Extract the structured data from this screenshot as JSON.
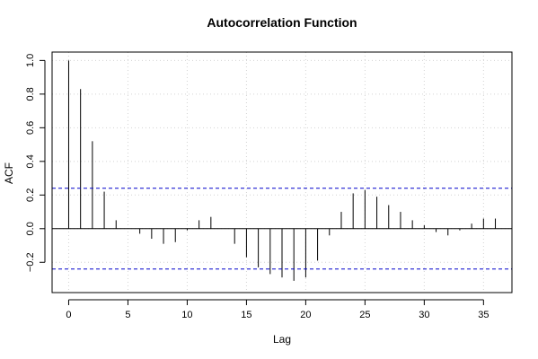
{
  "chart_data": {
    "type": "bar",
    "title": "Autocorrelation Function",
    "xlabel": "Lag",
    "ylabel": "ACF",
    "xlim": [
      -1.4,
      37.4
    ],
    "ylim": [
      -0.38,
      1.05
    ],
    "xticks": [
      0,
      5,
      10,
      15,
      20,
      25,
      30,
      35
    ],
    "xtick_labels": [
      "0",
      "5",
      "10",
      "15",
      "20",
      "25",
      "30",
      "35"
    ],
    "yticks": [
      -0.2,
      0.0,
      0.2,
      0.4,
      0.6,
      0.8,
      1.0
    ],
    "ytick_labels": [
      "−0.2",
      "0.0",
      "0.2",
      "0.4",
      "0.6",
      "0.8",
      "1.0"
    ],
    "grid": true,
    "confidence_bound": 0.24,
    "confidence_color": "#0000cc",
    "bar_color": "#000000",
    "lags": [
      0,
      1,
      2,
      3,
      4,
      5,
      6,
      7,
      8,
      9,
      10,
      11,
      12,
      13,
      14,
      15,
      16,
      17,
      18,
      19,
      20,
      21,
      22,
      23,
      24,
      25,
      26,
      27,
      28,
      29,
      30,
      31,
      32,
      33,
      34,
      35,
      36
    ],
    "values": [
      1.0,
      0.83,
      0.52,
      0.22,
      0.05,
      0.0,
      -0.03,
      -0.06,
      -0.09,
      -0.08,
      -0.01,
      0.05,
      0.07,
      0.0,
      -0.09,
      -0.17,
      -0.23,
      -0.27,
      -0.29,
      -0.31,
      -0.29,
      -0.19,
      -0.04,
      0.1,
      0.21,
      0.23,
      0.19,
      0.14,
      0.1,
      0.05,
      0.02,
      -0.02,
      -0.04,
      -0.01,
      0.03,
      0.06,
      0.06
    ]
  }
}
